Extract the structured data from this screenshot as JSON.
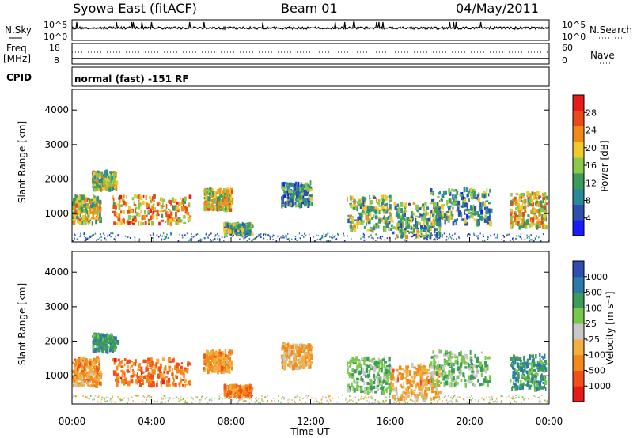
{
  "header": {
    "station": "Syowa East (fitACF)",
    "beam": "Beam 01",
    "date": "04/May/2011"
  },
  "strip": {
    "nsky_label": "N.Sky",
    "nsearch_label": "N.Search",
    "nsky_ticks": [
      "10^5",
      "10^0"
    ],
    "nsearch_ticks": [
      "10^5",
      "10^0"
    ],
    "freq_label": "Freq.",
    "freq_unit": "[MHz]",
    "freq_ticks": [
      "18",
      "8"
    ],
    "nave_label": "Nave",
    "nave_ticks": [
      "60",
      "0"
    ],
    "cpid_label": "CPID",
    "cpid_text": "normal (fast) -151 RF"
  },
  "x_axis": {
    "label": "Time UT",
    "ticks": [
      "00:00",
      "04:00",
      "08:00",
      "12:00",
      "16:00",
      "20:00",
      "00:00"
    ]
  },
  "colors": {
    "power_scale": [
      "#1a1aff",
      "#2f4fb0",
      "#2a8a9a",
      "#3c9a5a",
      "#8cc84a",
      "#f2c82a",
      "#f28a1a",
      "#e84a1a",
      "#e81a1a"
    ],
    "velocity_scale": [
      "#e81a1a",
      "#f2501a",
      "#f28a1a",
      "#f2b040",
      "#c8c8c8",
      "#7ac84a",
      "#3c9a5a",
      "#2a7aaa",
      "#2f4fb0"
    ]
  },
  "chart_data": [
    {
      "type": "heatmap",
      "title": "",
      "xlabel": "Time UT",
      "ylabel": "Slant Range [km]",
      "y_ticks": [
        "1000",
        "2000",
        "3000",
        "4000"
      ],
      "ylim": [
        180,
        4600
      ],
      "xlim": [
        0,
        24
      ],
      "colorbar_label": "Power [dB]",
      "colorbar_ticks": [
        "4",
        "8",
        "12",
        "16",
        "20",
        "24",
        "28"
      ],
      "colorbar_range": [
        0,
        30
      ],
      "echo_regions": [
        {
          "t": [
            0.0,
            1.4
          ],
          "r": [
            700,
            1500
          ],
          "level": 0.55
        },
        {
          "t": [
            1.0,
            2.2
          ],
          "r": [
            1700,
            2200
          ],
          "level": 0.5
        },
        {
          "t": [
            2.0,
            5.9
          ],
          "r": [
            700,
            1500
          ],
          "level": 0.7
        },
        {
          "t": [
            6.6,
            8.0
          ],
          "r": [
            1100,
            1700
          ],
          "level": 0.6
        },
        {
          "t": [
            7.6,
            9.0
          ],
          "r": [
            400,
            700
          ],
          "level": 0.4
        },
        {
          "t": [
            10.5,
            12.0
          ],
          "r": [
            1200,
            1900
          ],
          "level": 0.3
        },
        {
          "t": [
            13.8,
            16.0
          ],
          "r": [
            500,
            1500
          ],
          "level": 0.45
        },
        {
          "t": [
            16.0,
            18.5
          ],
          "r": [
            300,
            1300
          ],
          "level": 0.4
        },
        {
          "t": [
            18.0,
            21.0
          ],
          "r": [
            700,
            1700
          ],
          "level": 0.35
        },
        {
          "t": [
            22.0,
            23.8
          ],
          "r": [
            600,
            1600
          ],
          "level": 0.6
        }
      ]
    },
    {
      "type": "heatmap",
      "title": "",
      "xlabel": "Time UT",
      "ylabel": "Slant Range [km]",
      "y_ticks": [
        "1000",
        "2000",
        "3000",
        "4000"
      ],
      "ylim": [
        180,
        4600
      ],
      "xlim": [
        0,
        24
      ],
      "colorbar_label": "Velocity [m s⁻¹]",
      "colorbar_ticks": [
        "1000",
        "500",
        "100",
        "25",
        "-25",
        "-100",
        "-500",
        "-1000"
      ],
      "colorbar_range": [
        -1200,
        1200
      ],
      "echo_regions": [
        {
          "t": [
            0.0,
            1.4
          ],
          "r": [
            700,
            1500
          ],
          "level": -0.4
        },
        {
          "t": [
            1.0,
            2.2
          ],
          "r": [
            1700,
            2200
          ],
          "level": 0.5
        },
        {
          "t": [
            2.0,
            5.9
          ],
          "r": [
            700,
            1500
          ],
          "level": -0.6
        },
        {
          "t": [
            6.6,
            8.0
          ],
          "r": [
            1100,
            1700
          ],
          "level": -0.4
        },
        {
          "t": [
            7.6,
            9.0
          ],
          "r": [
            400,
            700
          ],
          "level": -0.5
        },
        {
          "t": [
            10.5,
            12.0
          ],
          "r": [
            1200,
            1900
          ],
          "level": -0.3
        },
        {
          "t": [
            13.8,
            16.0
          ],
          "r": [
            500,
            1500
          ],
          "level": 0.3
        },
        {
          "t": [
            16.0,
            18.5
          ],
          "r": [
            300,
            1300
          ],
          "level": -0.35
        },
        {
          "t": [
            18.0,
            21.0
          ],
          "r": [
            700,
            1700
          ],
          "level": 0.3
        },
        {
          "t": [
            22.0,
            23.8
          ],
          "r": [
            600,
            1600
          ],
          "level": 0.55
        }
      ]
    }
  ]
}
